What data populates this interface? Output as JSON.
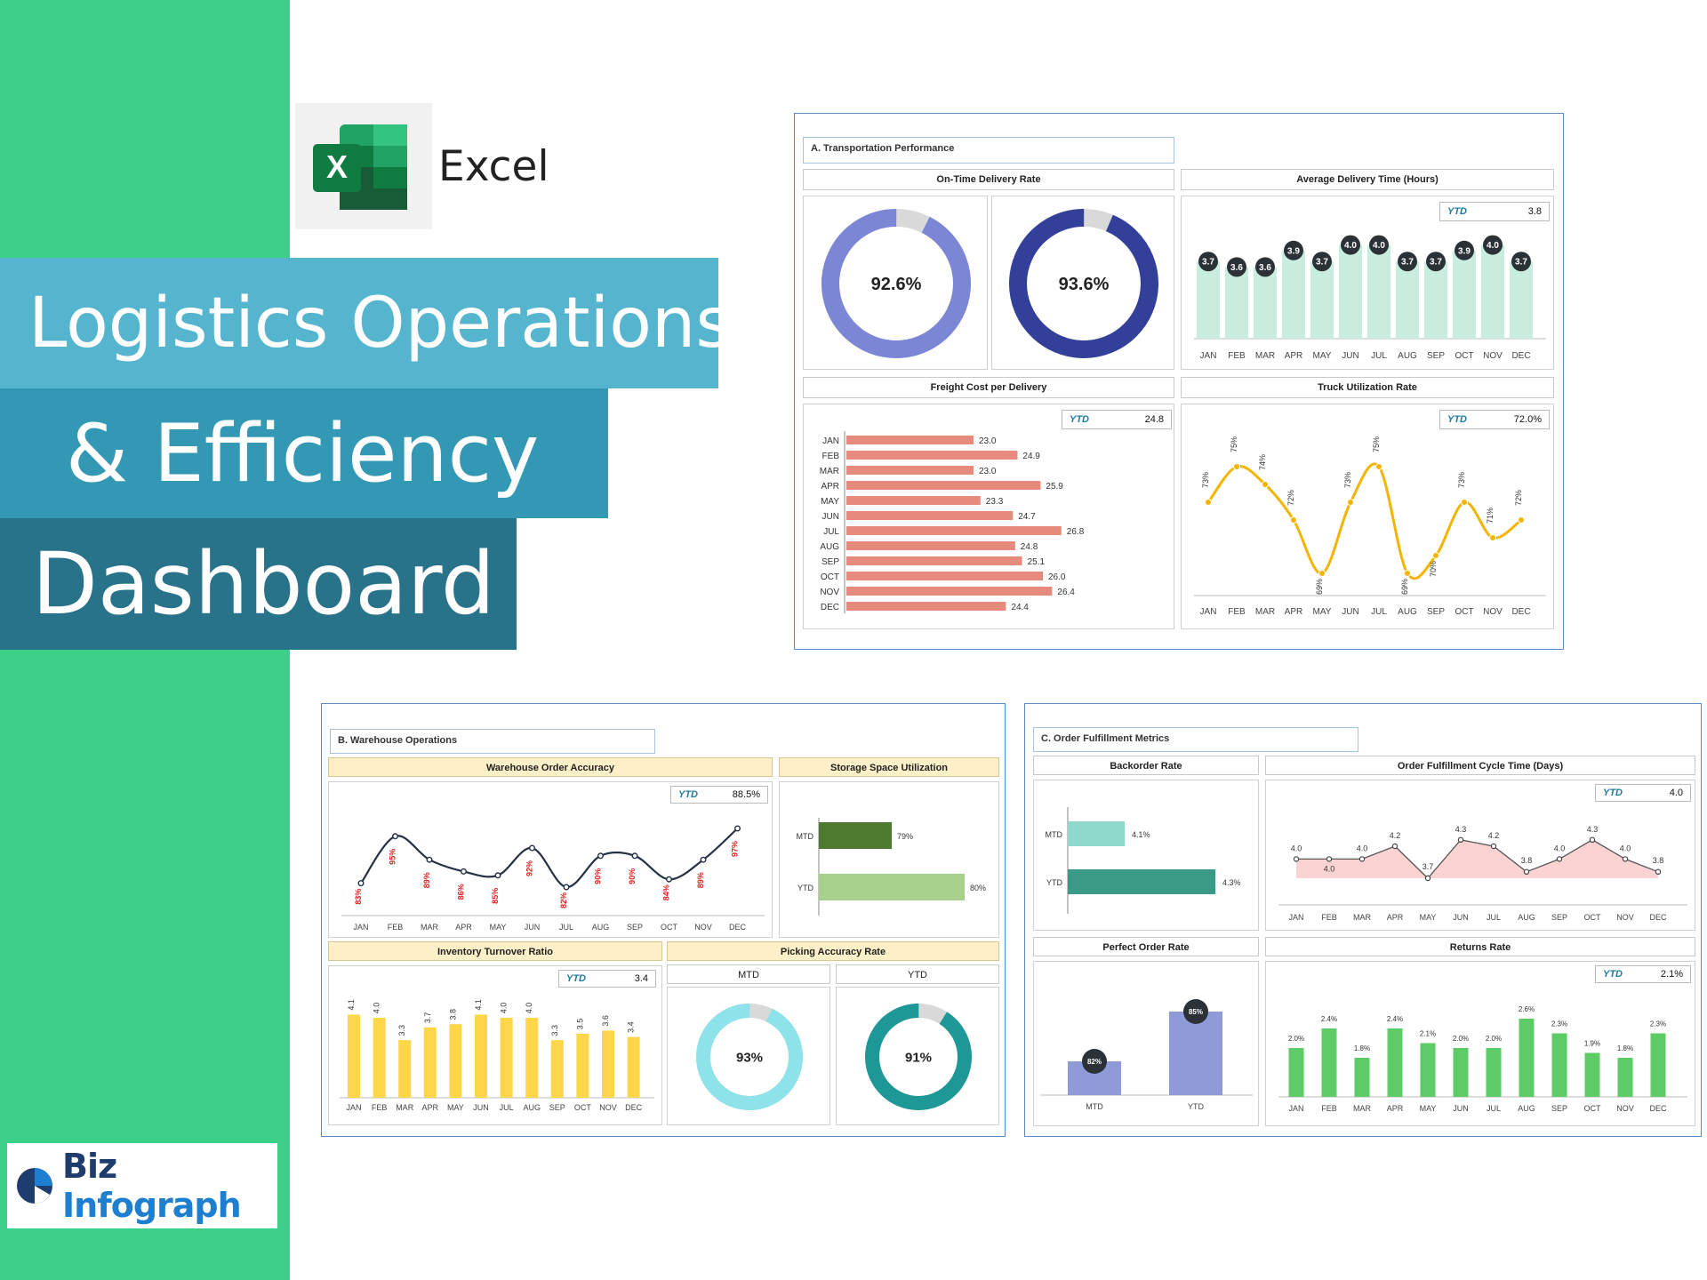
{
  "branding": {
    "excel_label": "Excel",
    "title_line1": "Logistics Operations",
    "title_line2": "& Efficiency",
    "title_line3": "Dashboard",
    "logo_biz": "Biz",
    "logo_infograph": "Infograph"
  },
  "months": [
    "JAN",
    "FEB",
    "MAR",
    "APR",
    "MAY",
    "JUN",
    "JUL",
    "AUG",
    "SEP",
    "OCT",
    "NOV",
    "DEC"
  ],
  "colors": {
    "sidebar": "#3ccf87",
    "excel_green": "#1f7244",
    "donut_light": "#7b86d4",
    "donut_dark": "#33409a",
    "delivery_bar": "#c9eee0",
    "badge": "#2b3137",
    "freight_bar": "#e58a7c",
    "truck_line": "#f4b400",
    "accuracy_line": "#263146",
    "inventory_bar": "#ffd54a",
    "mtd_storage": "#4e7a30",
    "ytd_storage": "#a8d08d",
    "picking_light": "#8ee3ea",
    "picking_dark": "#1e9797",
    "backorder_mtd": "#8ed9cc",
    "backorder_ytd": "#3a9a86",
    "perfect_order": "#8f9bd9",
    "cycle_fill": "#fbd3d3",
    "returns_bar": "#5dcc66"
  },
  "transport": {
    "section_title": "A. Transportation Performance",
    "ontime": {
      "title": "On-Time Delivery Rate",
      "mtd_value": "92.6%",
      "mtd_fraction": 0.926,
      "ytd_value": "93.6%",
      "ytd_fraction": 0.936
    },
    "avg_time": {
      "title": "Average Delivery Time (Hours)",
      "ytd_label": "YTD",
      "ytd_value": "3.8"
    },
    "freight": {
      "title": "Freight Cost per Delivery",
      "ytd_label": "YTD",
      "ytd_value": "24.8"
    },
    "truck": {
      "title": "Truck Utilization Rate",
      "ytd_label": "YTD",
      "ytd_value": "72.0%"
    }
  },
  "warehouse": {
    "section_title": "B. Warehouse Operations",
    "accuracy": {
      "title": "Warehouse Order Accuracy",
      "ytd_label": "YTD",
      "ytd_value": "88.5%"
    },
    "storage": {
      "title": "Storage Space Utilization",
      "categories": [
        "MTD",
        "YTD"
      ],
      "values": [
        79,
        80
      ],
      "labels": [
        "79%",
        "80%"
      ]
    },
    "inventory": {
      "title": "Inventory Turnover Ratio",
      "ytd_label": "YTD",
      "ytd_value": "3.4"
    },
    "picking": {
      "title": "Picking Accuracy Rate",
      "mtd_label": "MTD",
      "ytd_label": "YTD",
      "mtd_value": "93%",
      "mtd_fraction": 0.93,
      "ytd_value": "91%",
      "ytd_fraction": 0.91
    }
  },
  "fulfillment": {
    "section_title": "C. Order Fulfillment Metrics",
    "backorder": {
      "title": "Backorder Rate",
      "categories": [
        "MTD",
        "YTD"
      ],
      "values": [
        4.1,
        4.3
      ],
      "labels": [
        "4.1%",
        "4.3%"
      ]
    },
    "cycle": {
      "title": "Order Fulfillment Cycle Time (Days)",
      "ytd_label": "YTD",
      "ytd_value": "4.0"
    },
    "perfect": {
      "title": "Perfect Order Rate",
      "categories": [
        "MTD",
        "YTD"
      ],
      "values": [
        82,
        85
      ],
      "labels": [
        "82%",
        "85%"
      ]
    },
    "returns": {
      "title": "Returns Rate",
      "ytd_label": "YTD",
      "ytd_value": "2.1%"
    }
  },
  "chart_data": [
    {
      "type": "bar",
      "id": "avg_delivery_time",
      "categories": [
        "JAN",
        "FEB",
        "MAR",
        "APR",
        "MAY",
        "JUN",
        "JUL",
        "AUG",
        "SEP",
        "OCT",
        "NOV",
        "DEC"
      ],
      "values": [
        3.7,
        3.6,
        3.6,
        3.9,
        3.7,
        4.0,
        4.0,
        3.7,
        3.7,
        3.9,
        4.0,
        3.7
      ],
      "labels": [
        "3.7",
        "3.6",
        "3.6",
        "3.9",
        "3.7",
        "4.0",
        "4.0",
        "3.7",
        "3.7",
        "3.9",
        "4.0",
        "3.7"
      ]
    },
    {
      "type": "bar",
      "id": "freight_cost",
      "orientation": "horizontal",
      "categories": [
        "JAN",
        "FEB",
        "MAR",
        "APR",
        "MAY",
        "JUN",
        "JUL",
        "AUG",
        "SEP",
        "OCT",
        "NOV",
        "DEC"
      ],
      "values": [
        23.0,
        24.9,
        23.0,
        25.9,
        23.3,
        24.7,
        26.8,
        24.8,
        25.1,
        26.0,
        26.4,
        24.4
      ],
      "labels": [
        "23.0",
        "24.9",
        "23.0",
        "25.9",
        "23.3",
        "24.7",
        "26.8",
        "24.8",
        "25.1",
        "26.0",
        "26.4",
        "24.4"
      ]
    },
    {
      "type": "line",
      "id": "truck_utilization",
      "categories": [
        "JAN",
        "FEB",
        "MAR",
        "APR",
        "MAY",
        "JUN",
        "JUL",
        "AUG",
        "SEP",
        "OCT",
        "NOV",
        "DEC"
      ],
      "values": [
        73,
        75,
        74,
        72,
        69,
        73,
        75,
        69,
        70,
        73,
        71,
        72
      ],
      "labels": [
        "73%",
        "75%",
        "74%",
        "72%",
        "69%",
        "73%",
        "75%",
        "69%",
        "70%",
        "73%",
        "71%",
        "72%"
      ]
    },
    {
      "type": "line",
      "id": "order_accuracy",
      "categories": [
        "JAN",
        "FEB",
        "MAR",
        "APR",
        "MAY",
        "JUN",
        "JUL",
        "AUG",
        "SEP",
        "OCT",
        "NOV",
        "DEC"
      ],
      "values": [
        83,
        95,
        89,
        86,
        85,
        92,
        82,
        90,
        90,
        84,
        89,
        97
      ],
      "labels": [
        "83%",
        "95%",
        "89%",
        "86%",
        "85%",
        "92%",
        "82%",
        "90%",
        "90%",
        "84%",
        "89%",
        "97%"
      ]
    },
    {
      "type": "bar",
      "id": "inventory_turnover",
      "categories": [
        "JAN",
        "FEB",
        "MAR",
        "APR",
        "MAY",
        "JUN",
        "JUL",
        "AUG",
        "SEP",
        "OCT",
        "NOV",
        "DEC"
      ],
      "values": [
        4.1,
        4.0,
        3.3,
        3.7,
        3.8,
        4.1,
        4.0,
        4.0,
        3.3,
        3.5,
        3.6,
        3.4
      ],
      "labels": [
        "4.1",
        "4.0",
        "3.3",
        "3.7",
        "3.8",
        "4.1",
        "4.0",
        "4.0",
        "3.3",
        "3.5",
        "3.6",
        "3.4"
      ]
    },
    {
      "type": "area",
      "id": "cycle_time",
      "categories": [
        "JAN",
        "FEB",
        "MAR",
        "APR",
        "MAY",
        "JUN",
        "JUL",
        "AUG",
        "SEP",
        "OCT",
        "NOV",
        "DEC"
      ],
      "values": [
        4.0,
        4.0,
        4.0,
        4.2,
        3.7,
        4.3,
        4.2,
        3.8,
        4.0,
        4.3,
        4.0,
        3.8
      ],
      "labels": [
        "4.0",
        "4.0",
        "4.0",
        "4.2",
        "3.7",
        "4.3",
        "4.2",
        "3.8",
        "4.0",
        "4.3",
        "4.0",
        "3.8"
      ]
    },
    {
      "type": "bar",
      "id": "returns_rate",
      "categories": [
        "JAN",
        "FEB",
        "MAR",
        "APR",
        "MAY",
        "JUN",
        "JUL",
        "AUG",
        "SEP",
        "OCT",
        "NOV",
        "DEC"
      ],
      "values": [
        2.0,
        2.4,
        1.8,
        2.4,
        2.1,
        2.0,
        2.0,
        2.6,
        2.3,
        1.9,
        1.8,
        2.3
      ],
      "labels": [
        "2.0%",
        "2.4%",
        "1.8%",
        "2.4%",
        "2.1%",
        "2.0%",
        "2.0%",
        "2.6%",
        "2.3%",
        "1.9%",
        "1.8%",
        "2.3%"
      ]
    }
  ]
}
